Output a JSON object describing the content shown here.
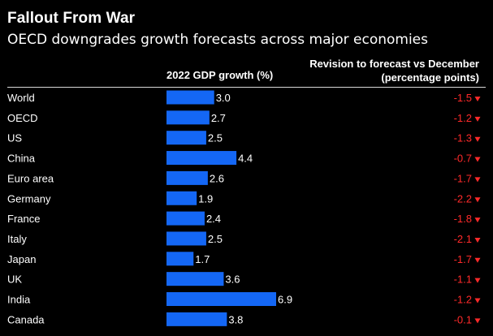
{
  "header": {
    "title": "Fallout From War",
    "subtitle": "OECD downgrades growth forecasts across major economies",
    "gdp_column": "2022 GDP growth (%)",
    "revision_column_line1": "Revision to forecast vs December",
    "revision_column_line2": "(percentage points)"
  },
  "colors": {
    "background": "#000000",
    "bar": "#1467f5",
    "revision": "#ff2a2a",
    "text": "#ffffff"
  },
  "chart_data": {
    "type": "bar",
    "orientation": "horizontal",
    "title": "Fallout From War",
    "subtitle": "OECD downgrades growth forecasts across major economies",
    "categories": [
      "World",
      "OECD",
      "US",
      "China",
      "Euro area",
      "Germany",
      "France",
      "Italy",
      "Japan",
      "UK",
      "India",
      "Canada"
    ],
    "series": [
      {
        "name": "2022 GDP growth (%)",
        "values": [
          3.0,
          2.7,
          2.5,
          4.4,
          2.6,
          1.9,
          2.4,
          2.5,
          1.7,
          3.6,
          6.9,
          3.8
        ],
        "labels": [
          "3.0",
          "2.7",
          "2.5",
          "4.4",
          "2.6",
          "1.9",
          "2.4",
          "2.5",
          "1.7",
          "3.6",
          "6.9",
          "3.8"
        ]
      },
      {
        "name": "Revision to forecast vs December (percentage points)",
        "values": [
          -1.5,
          -1.2,
          -1.3,
          -0.7,
          -1.7,
          -2.2,
          -1.8,
          -2.1,
          -1.7,
          -1.1,
          -1.2,
          -0.1
        ],
        "labels": [
          "-1.5",
          "-1.2",
          "-1.3",
          "-0.7",
          "-1.7",
          "-2.2",
          "-1.8",
          "-2.1",
          "-1.7",
          "-1.1",
          "-1.2",
          "-0.1"
        ],
        "marker": "down-triangle"
      }
    ],
    "xlim": [
      0,
      6.9
    ],
    "grid": false,
    "legend": "none"
  }
}
